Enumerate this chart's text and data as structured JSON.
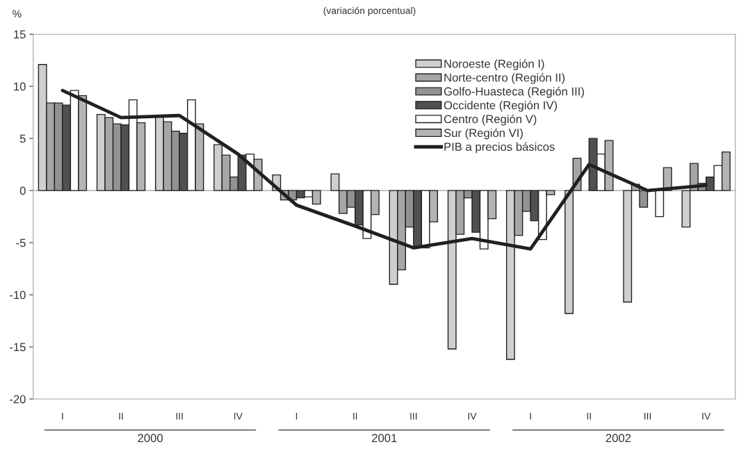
{
  "chart_data": {
    "type": "bar",
    "subtitle": "(variación porcentual)",
    "ylabel": "%",
    "categories": [
      "I",
      "II",
      "III",
      "IV",
      "I",
      "II",
      "III",
      "IV",
      "I",
      "II",
      "III",
      "IV"
    ],
    "series": [
      {
        "name": "Noroeste (Región I)",
        "color": "#cfcfd1",
        "values": [
          12.1,
          7.3,
          7.1,
          4.4,
          1.5,
          1.6,
          -9.0,
          -15.2,
          -16.2,
          -11.8,
          -10.7,
          -3.5
        ]
      },
      {
        "name": "Norte-centro (Región II)",
        "color": "#a6a6a8",
        "values": [
          8.4,
          7.0,
          6.6,
          3.4,
          -0.9,
          -2.2,
          -7.6,
          -4.2,
          -4.3,
          3.1,
          0.6,
          2.6
        ]
      },
      {
        "name": "Golfo-Huasteca (Región III)",
        "color": "#929294",
        "values": [
          8.4,
          6.4,
          5.7,
          1.3,
          -0.9,
          -1.6,
          -3.5,
          -0.7,
          -2.0,
          null,
          -1.6,
          0.7
        ]
      },
      {
        "name": "Occidente (Región IV)",
        "color": "#505052",
        "values": [
          8.2,
          6.3,
          5.5,
          3.4,
          -0.7,
          -3.3,
          -5.4,
          -4.0,
          -2.9,
          5.0,
          null,
          1.3
        ]
      },
      {
        "name": "Centro (Región V)",
        "color": "#ffffff",
        "values": [
          9.6,
          8.7,
          8.7,
          3.5,
          -0.6,
          -4.6,
          -5.5,
          -5.6,
          -4.7,
          3.5,
          -2.5,
          2.4
        ]
      },
      {
        "name": "Sur (Región VI)",
        "color": "#b4b4b6",
        "values": [
          9.1,
          6.5,
          6.4,
          3.0,
          -1.3,
          -2.3,
          -3.0,
          -2.7,
          -0.4,
          4.8,
          2.2,
          3.7
        ]
      },
      {
        "name": "PIB a precios básicos",
        "type": "line",
        "color": "#231f20",
        "values": [
          9.6,
          7.0,
          7.2,
          3.5,
          -1.4,
          -3.4,
          -5.5,
          -4.6,
          -5.6,
          2.5,
          0.0,
          0.5
        ]
      }
    ],
    "ylim": [
      -20,
      15
    ],
    "yticks": [
      -20,
      -15,
      -10,
      -5,
      0,
      5,
      10,
      15
    ],
    "ref_lines": [
      {
        "axis": "y",
        "value": 0,
        "color": "#a0a0a0"
      }
    ],
    "annotations": [
      "2000",
      "2001",
      "2002"
    ],
    "grid": false,
    "legend": "top right",
    "marker": "none",
    "line_style": "solid"
  }
}
